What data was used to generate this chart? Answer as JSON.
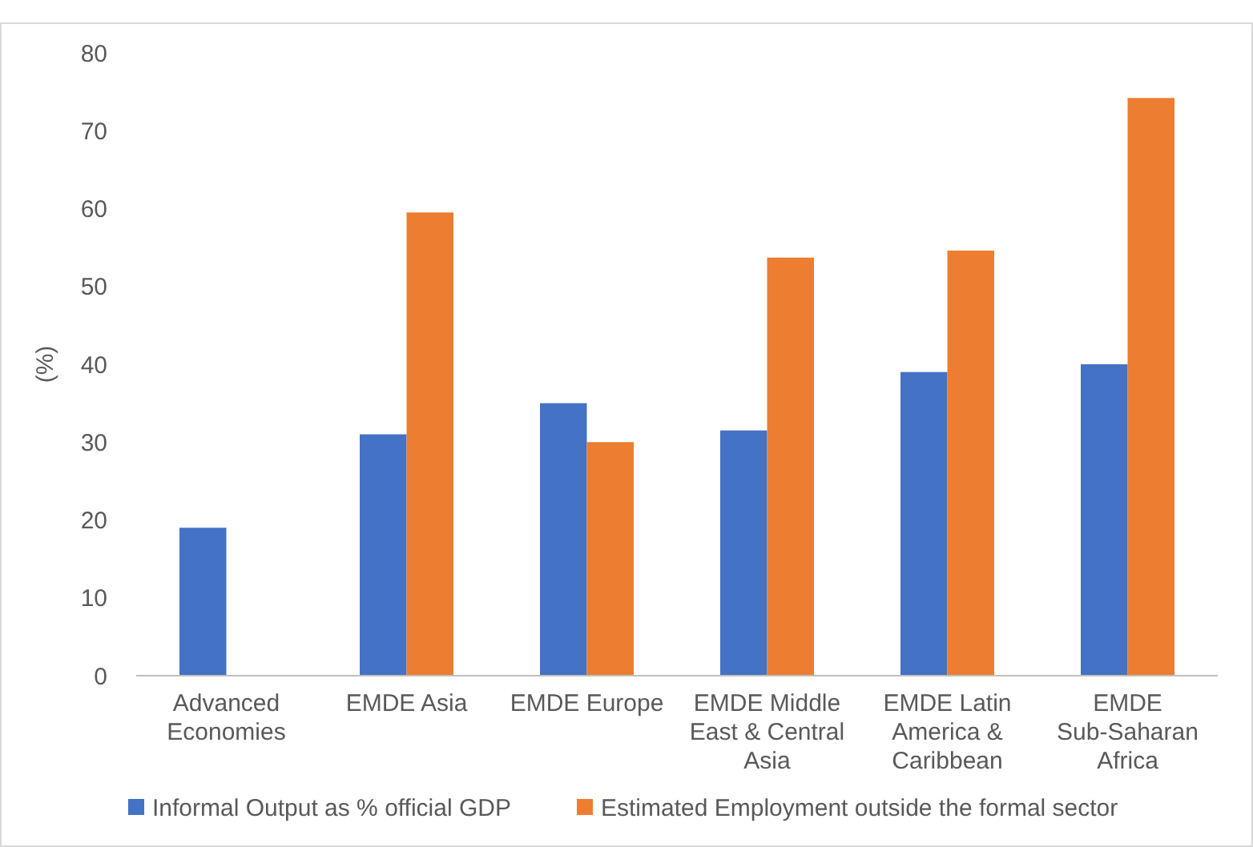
{
  "chart_data": {
    "type": "bar",
    "ylabel": "(%)",
    "categories": [
      "Advanced Economies",
      "EMDE Asia",
      "EMDE Europe",
      "EMDE Middle East & Central Asia",
      "EMDE Latin America & Caribbean",
      "EMDE Sub-Saharan Africa"
    ],
    "series": [
      {
        "name": "Informal Output as % official GDP",
        "color": "#4472c4",
        "values": [
          19,
          31,
          35,
          31.5,
          39,
          40
        ]
      },
      {
        "name": "Estimated Employment outside the formal sector",
        "color": "#ed7d31",
        "values": [
          null,
          59.5,
          30,
          53.7,
          54.6,
          74.2
        ]
      }
    ],
    "ylim": [
      0,
      80
    ],
    "yticks": [
      0,
      10,
      20,
      30,
      40,
      50,
      60,
      70,
      80
    ],
    "grid": false,
    "legend": "bottom"
  }
}
